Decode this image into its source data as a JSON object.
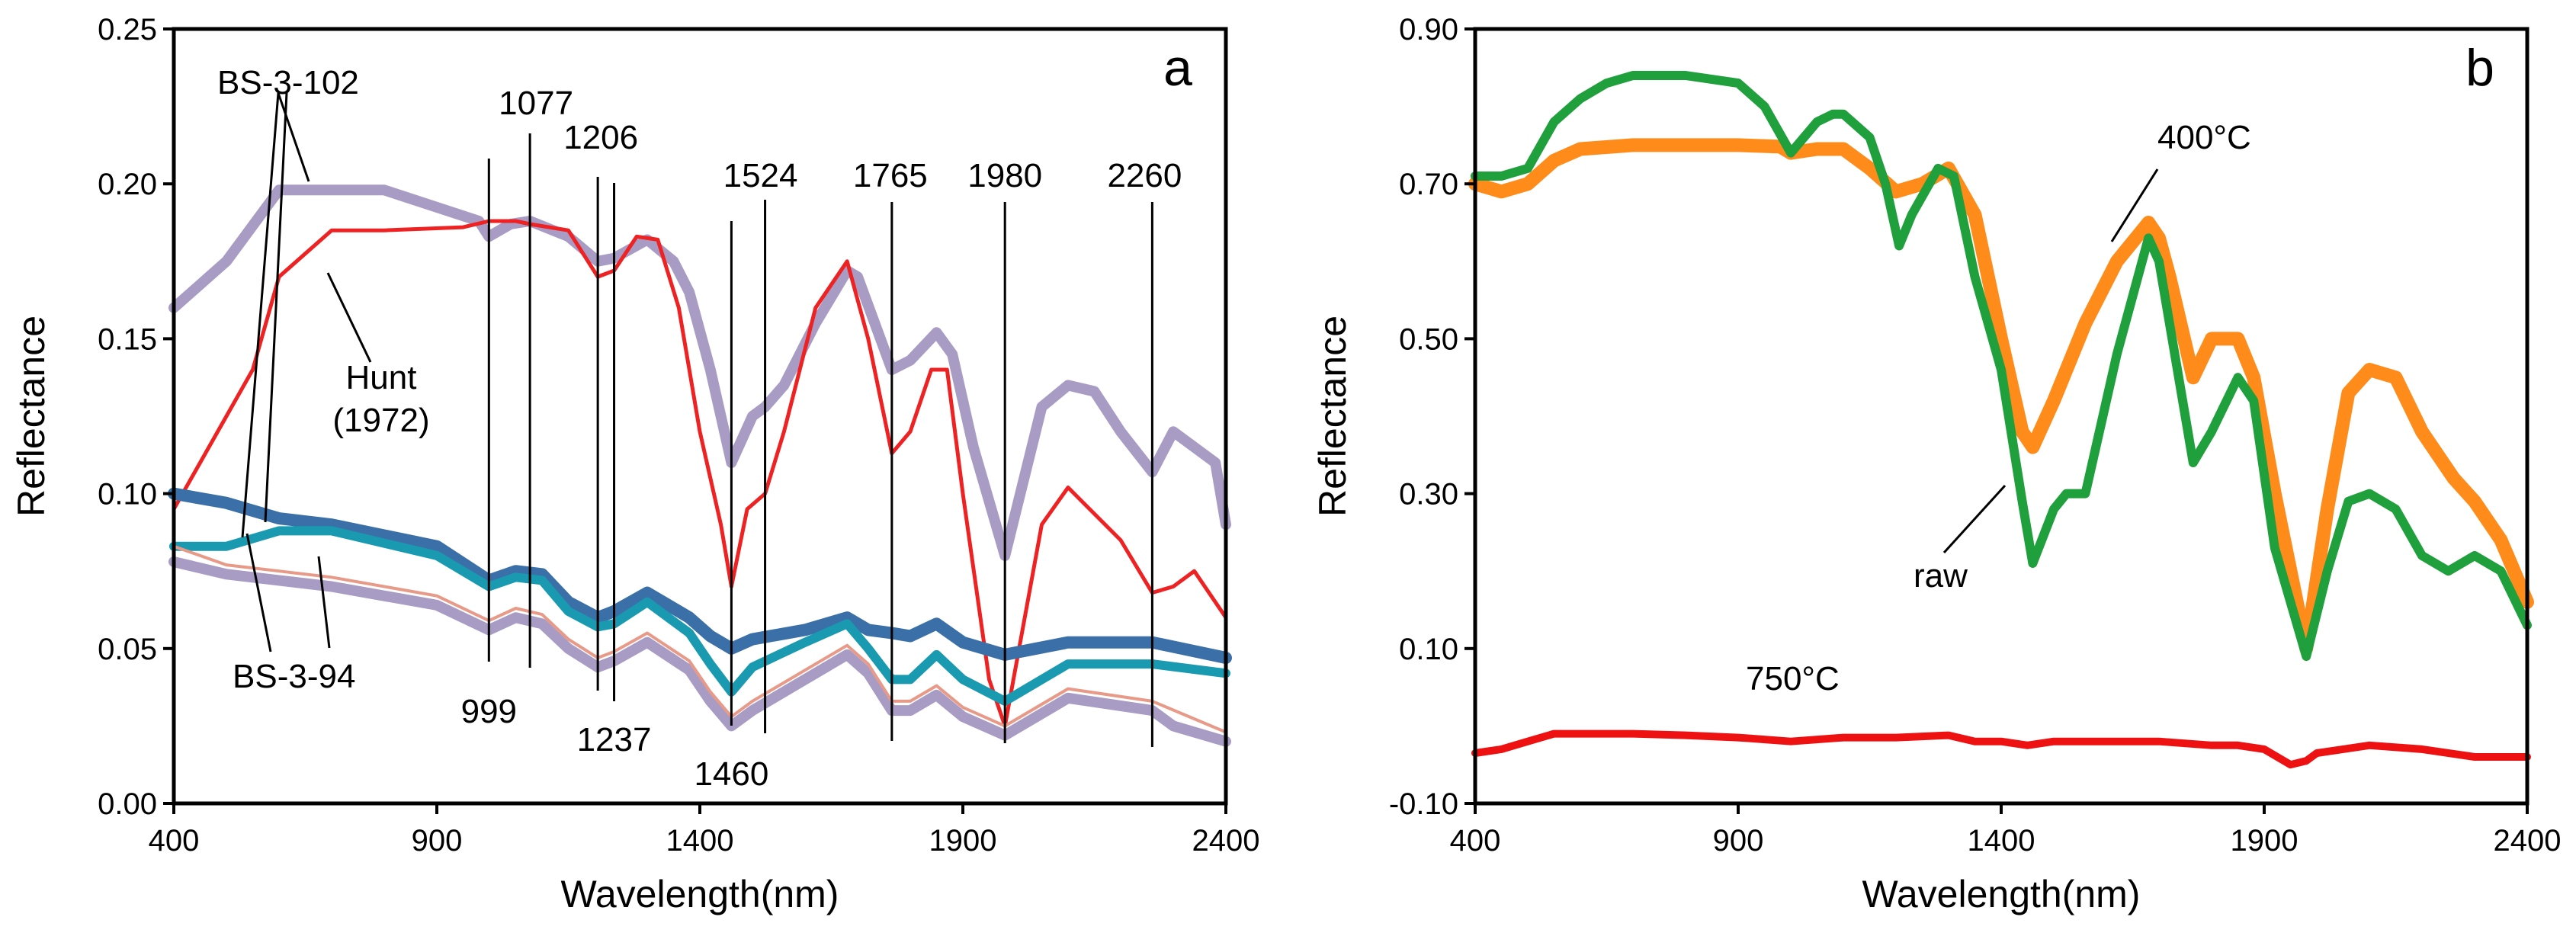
{
  "chart_data": [
    {
      "type": "line",
      "panel_label": "a",
      "xlabel": "Wavelength(nm)",
      "ylabel": "Reflectance",
      "xlim": [
        400,
        2400
      ],
      "ylim": [
        0,
        0.25
      ],
      "xticks": [
        "400",
        "900",
        "1400",
        "1900",
        "2400"
      ],
      "yticks": [
        "0.00",
        "0.05",
        "0.10",
        "0.15",
        "0.20",
        "0.25"
      ],
      "line_labels": [
        {
          "text": "999",
          "x": 999
        },
        {
          "text": "1077",
          "x": 1077
        },
        {
          "text": "1206",
          "x": 1206
        },
        {
          "text": "1237",
          "x": 1237
        },
        {
          "text": "1460",
          "x": 1460
        },
        {
          "text": "1524",
          "x": 1524
        },
        {
          "text": "1765",
          "x": 1765
        },
        {
          "text": "1980",
          "x": 1980
        },
        {
          "text": "2260",
          "x": 2260
        }
      ],
      "text_labels": {
        "bs102": "BS-3-102",
        "bs94": "BS-3-94",
        "hunt1": "Hunt",
        "hunt2": "(1972)"
      },
      "series": [
        {
          "name": "BS-3-102",
          "color": "#a99cc4",
          "width": 14,
          "x": [
            400,
            500,
            600,
            800,
            980,
            999,
            1040,
            1077,
            1150,
            1206,
            1237,
            1300,
            1350,
            1380,
            1420,
            1460,
            1500,
            1524,
            1560,
            1620,
            1680,
            1700,
            1765,
            1800,
            1850,
            1880,
            1920,
            1980,
            2050,
            2100,
            2150,
            2200,
            2260,
            2300,
            2380,
            2400
          ],
          "y": [
            0.16,
            0.175,
            0.198,
            0.198,
            0.188,
            0.183,
            0.187,
            0.188,
            0.183,
            0.175,
            0.176,
            0.182,
            0.175,
            0.165,
            0.14,
            0.11,
            0.125,
            0.128,
            0.135,
            0.155,
            0.172,
            0.17,
            0.14,
            0.143,
            0.152,
            0.145,
            0.115,
            0.08,
            0.128,
            0.135,
            0.133,
            0.12,
            0.107,
            0.12,
            0.11,
            0.09
          ]
        },
        {
          "name": "Hunt (1972)",
          "color": "#ee2222",
          "width": 5,
          "x": [
            400,
            450,
            500,
            550,
            600,
            700,
            800,
            950,
            999,
            1050,
            1077,
            1150,
            1206,
            1237,
            1280,
            1320,
            1360,
            1400,
            1440,
            1460,
            1490,
            1524,
            1560,
            1620,
            1680,
            1720,
            1765,
            1800,
            1840,
            1870,
            1900,
            1950,
            1980,
            2050,
            2100,
            2200,
            2260,
            2300,
            2340,
            2400
          ],
          "y": [
            0.095,
            0.11,
            0.125,
            0.14,
            0.17,
            0.185,
            0.185,
            0.186,
            0.188,
            0.188,
            0.187,
            0.185,
            0.17,
            0.172,
            0.183,
            0.182,
            0.16,
            0.12,
            0.09,
            0.07,
            0.095,
            0.1,
            0.12,
            0.16,
            0.175,
            0.15,
            0.113,
            0.12,
            0.14,
            0.14,
            0.1,
            0.04,
            0.025,
            0.09,
            0.102,
            0.085,
            0.068,
            0.07,
            0.075,
            0.06
          ]
        },
        {
          "name": "BS-3-94 upper",
          "color": "#3a6fa8",
          "width": 16,
          "x": [
            400,
            500,
            600,
            700,
            900,
            999,
            1050,
            1100,
            1150,
            1206,
            1237,
            1300,
            1380,
            1420,
            1460,
            1500,
            1600,
            1680,
            1720,
            1765,
            1800,
            1850,
            1900,
            1980,
            2100,
            2260,
            2400
          ],
          "y": [
            0.1,
            0.097,
            0.092,
            0.09,
            0.083,
            0.072,
            0.075,
            0.074,
            0.065,
            0.06,
            0.062,
            0.068,
            0.06,
            0.054,
            0.05,
            0.053,
            0.056,
            0.06,
            0.056,
            0.055,
            0.054,
            0.058,
            0.052,
            0.048,
            0.052,
            0.052,
            0.047
          ]
        },
        {
          "name": "BS-3-94 teal",
          "color": "#1a9ab0",
          "width": 12,
          "x": [
            400,
            500,
            600,
            700,
            900,
            999,
            1050,
            1100,
            1150,
            1206,
            1237,
            1300,
            1380,
            1420,
            1460,
            1500,
            1600,
            1680,
            1720,
            1765,
            1800,
            1850,
            1900,
            1980,
            2100,
            2260,
            2400
          ],
          "y": [
            0.083,
            0.083,
            0.088,
            0.088,
            0.08,
            0.07,
            0.073,
            0.072,
            0.062,
            0.057,
            0.058,
            0.065,
            0.055,
            0.045,
            0.036,
            0.044,
            0.052,
            0.058,
            0.05,
            0.04,
            0.04,
            0.048,
            0.04,
            0.033,
            0.045,
            0.045,
            0.042
          ]
        },
        {
          "name": "BS-3-94 lower",
          "color": "#a99cc4",
          "width": 14,
          "x": [
            400,
            500,
            600,
            700,
            900,
            999,
            1050,
            1100,
            1150,
            1206,
            1237,
            1300,
            1380,
            1420,
            1460,
            1500,
            1600,
            1680,
            1720,
            1765,
            1800,
            1850,
            1900,
            1980,
            2100,
            2260,
            2300,
            2400
          ],
          "y": [
            0.078,
            0.074,
            0.072,
            0.07,
            0.064,
            0.056,
            0.06,
            0.058,
            0.05,
            0.044,
            0.046,
            0.052,
            0.043,
            0.033,
            0.025,
            0.03,
            0.04,
            0.048,
            0.042,
            0.03,
            0.03,
            0.035,
            0.028,
            0.022,
            0.034,
            0.03,
            0.025,
            0.02
          ]
        },
        {
          "name": "BS-3-94 pink",
          "color": "#e89a88",
          "width": 4,
          "x": [
            400,
            500,
            600,
            700,
            900,
            999,
            1050,
            1100,
            1150,
            1206,
            1237,
            1300,
            1380,
            1420,
            1460,
            1500,
            1600,
            1680,
            1720,
            1765,
            1800,
            1850,
            1900,
            1980,
            2100,
            2260,
            2400
          ],
          "y": [
            0.083,
            0.077,
            0.075,
            0.073,
            0.067,
            0.059,
            0.063,
            0.061,
            0.053,
            0.047,
            0.049,
            0.055,
            0.046,
            0.036,
            0.028,
            0.033,
            0.043,
            0.051,
            0.045,
            0.033,
            0.033,
            0.038,
            0.031,
            0.025,
            0.037,
            0.033,
            0.023
          ]
        }
      ]
    },
    {
      "type": "line",
      "panel_label": "b",
      "xlabel": "Wavelength(nm)",
      "ylabel": "Reflectance",
      "xlim": [
        400,
        2400
      ],
      "ylim": [
        -0.1,
        0.9
      ],
      "xticks": [
        "400",
        "900",
        "1400",
        "1900",
        "2400"
      ],
      "yticks": [
        "-0.10",
        "0.10",
        "0.30",
        "0.50",
        "0.70",
        "0.90"
      ],
      "series": [
        {
          "name": "400°C",
          "color": "#ff8c1a",
          "width": 18,
          "x": [
            400,
            450,
            500,
            550,
            600,
            700,
            800,
            900,
            980,
            1000,
            1050,
            1100,
            1150,
            1200,
            1250,
            1300,
            1350,
            1400,
            1440,
            1460,
            1500,
            1560,
            1620,
            1680,
            1700,
            1720,
            1765,
            1800,
            1850,
            1880,
            1920,
            1980,
            2020,
            2060,
            2100,
            2150,
            2200,
            2260,
            2300,
            2350,
            2400
          ],
          "y": [
            0.7,
            0.69,
            0.7,
            0.73,
            0.745,
            0.75,
            0.75,
            0.75,
            0.748,
            0.74,
            0.745,
            0.745,
            0.72,
            0.69,
            0.7,
            0.72,
            0.66,
            0.5,
            0.38,
            0.36,
            0.42,
            0.52,
            0.6,
            0.65,
            0.63,
            0.58,
            0.45,
            0.5,
            0.5,
            0.45,
            0.3,
            0.1,
            0.28,
            0.43,
            0.46,
            0.45,
            0.38,
            0.32,
            0.29,
            0.24,
            0.16
          ]
        },
        {
          "name": "raw",
          "color": "#1fa03c",
          "width": 12,
          "x": [
            400,
            450,
            500,
            550,
            600,
            650,
            700,
            800,
            900,
            950,
            1000,
            1050,
            1080,
            1100,
            1150,
            1180,
            1206,
            1230,
            1280,
            1310,
            1350,
            1400,
            1440,
            1460,
            1500,
            1524,
            1560,
            1620,
            1680,
            1700,
            1720,
            1765,
            1800,
            1850,
            1880,
            1920,
            1980,
            2020,
            2060,
            2100,
            2150,
            2200,
            2250,
            2300,
            2350,
            2400
          ],
          "y": [
            0.71,
            0.71,
            0.72,
            0.78,
            0.81,
            0.83,
            0.84,
            0.84,
            0.83,
            0.8,
            0.74,
            0.78,
            0.79,
            0.79,
            0.76,
            0.7,
            0.62,
            0.66,
            0.72,
            0.71,
            0.58,
            0.46,
            0.29,
            0.21,
            0.28,
            0.3,
            0.3,
            0.48,
            0.63,
            0.6,
            0.52,
            0.34,
            0.38,
            0.45,
            0.42,
            0.23,
            0.09,
            0.2,
            0.29,
            0.3,
            0.28,
            0.22,
            0.2,
            0.22,
            0.2,
            0.13
          ]
        },
        {
          "name": "750°C",
          "color": "#ee1111",
          "width": 10,
          "x": [
            400,
            450,
            500,
            550,
            600,
            700,
            800,
            900,
            1000,
            1100,
            1200,
            1300,
            1350,
            1400,
            1450,
            1500,
            1600,
            1700,
            1800,
            1850,
            1900,
            1950,
            1980,
            2000,
            2050,
            2100,
            2200,
            2300,
            2350,
            2400
          ],
          "y": [
            -0.035,
            -0.03,
            -0.02,
            -0.01,
            -0.01,
            -0.01,
            -0.012,
            -0.015,
            -0.02,
            -0.015,
            -0.015,
            -0.012,
            -0.02,
            -0.02,
            -0.025,
            -0.02,
            -0.02,
            -0.02,
            -0.025,
            -0.025,
            -0.03,
            -0.05,
            -0.045,
            -0.035,
            -0.03,
            -0.025,
            -0.03,
            -0.04,
            -0.04,
            -0.04
          ]
        }
      ],
      "annotations": [
        "400°C",
        "raw",
        "750°C"
      ]
    }
  ]
}
